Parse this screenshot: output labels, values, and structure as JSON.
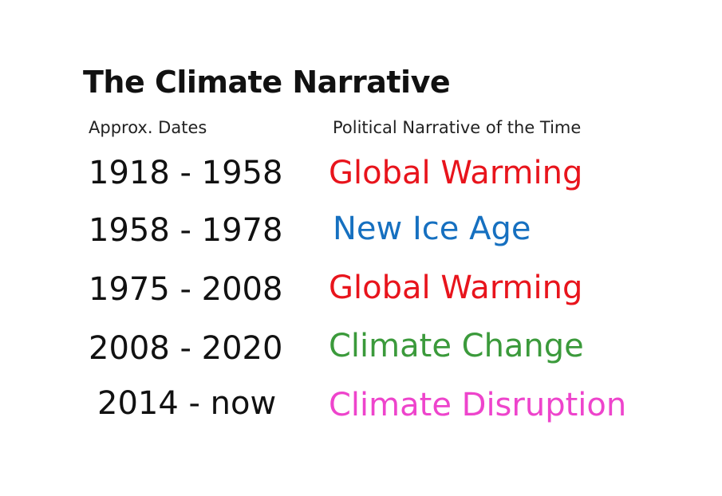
{
  "title": "The Climate Narrative",
  "headers": {
    "dates": "Approx. Dates",
    "narrative": "Political Narrative of the Time"
  },
  "rows": [
    {
      "dates": "1918 - 1958",
      "narrative": "Global Warming",
      "color": "#e8141c"
    },
    {
      "dates": "1958 - 1978",
      "narrative": "New Ice Age",
      "color": "#1670c0"
    },
    {
      "dates": "1975 - 2008",
      "narrative": "Global Warming",
      "color": "#e8141c"
    },
    {
      "dates": "2008 - 2020",
      "narrative": "Climate Change",
      "color": "#3b9a3b"
    },
    {
      "dates": "2014 - now",
      "narrative": "Climate Disruption",
      "color": "#ee44cc"
    }
  ]
}
